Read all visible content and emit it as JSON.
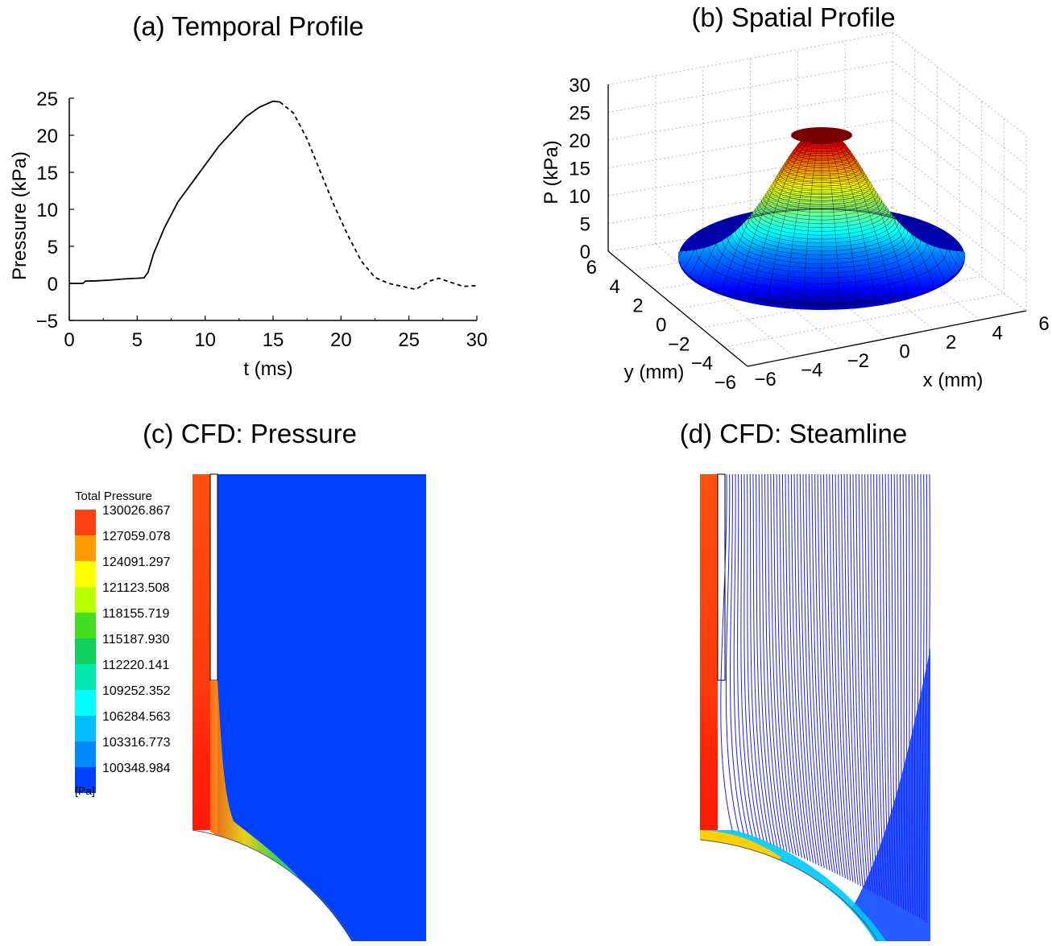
{
  "panels": {
    "a_title": "(a) Temporal Profile",
    "b_title": "(b) Spatial Profile",
    "c_title": "(c) CFD: Pressure",
    "d_title": "(d) CFD: Steamline"
  },
  "chart_data": [
    {
      "type": "line",
      "title": "(a) Temporal Profile",
      "xlabel": "t (ms)",
      "ylabel": "Pressure (kPa)",
      "xlim": [
        0,
        30
      ],
      "ylim": [
        -5,
        25
      ],
      "xticks": [
        "0",
        "5",
        "10",
        "15",
        "20",
        "25",
        "30"
      ],
      "yticks": [
        "−5",
        "0",
        "5",
        "10",
        "15",
        "20",
        "25"
      ],
      "grid": false,
      "series": [
        {
          "style": "solid",
          "x": [
            0,
            1,
            1.2,
            2,
            3,
            4,
            5,
            5.5,
            5.8,
            6.2,
            7,
            8,
            9,
            10,
            11,
            12,
            13,
            14,
            15,
            15.5
          ],
          "y": [
            0,
            0,
            0.3,
            0.35,
            0.45,
            0.6,
            0.7,
            0.75,
            1.5,
            4,
            7.5,
            11,
            13.5,
            16,
            18.5,
            20.5,
            22.5,
            23.8,
            24.6,
            24.5
          ]
        },
        {
          "style": "dashed",
          "x": [
            15.5,
            16.5,
            17.5,
            18.5,
            19.5,
            20.5,
            21.5,
            22.5,
            23.5,
            24.5,
            25.5,
            26.5,
            27.2,
            28,
            29,
            30
          ],
          "y": [
            24.5,
            23,
            19.5,
            15,
            10.5,
            6.5,
            3,
            0.8,
            0,
            -0.4,
            -0.8,
            0.3,
            0.7,
            0.2,
            -0.4,
            -0.3
          ]
        }
      ]
    },
    {
      "type": "surface",
      "title": "(b) Spatial Profile",
      "xlabel": "x (mm)",
      "ylabel": "y (mm)",
      "zlabel": "P (kPa)",
      "xlim": [
        -6,
        6
      ],
      "ylim": [
        -6,
        6
      ],
      "zlim": [
        0,
        30
      ],
      "xticks": [
        "−6",
        "−4",
        "−2",
        "0",
        "2",
        "4",
        "6"
      ],
      "yticks": [
        "−6",
        "−4",
        "−2",
        "0",
        "2",
        "4",
        "6"
      ],
      "zticks": [
        "0",
        "5",
        "10",
        "15",
        "20",
        "25",
        "30"
      ],
      "peak": 24.5,
      "grid": true,
      "colormap": "jet"
    },
    {
      "type": "heatmap",
      "title": "(c) CFD: Pressure",
      "legend_title": "Total Pressure",
      "legend_unit": "[Pa]",
      "legend_values": [
        "130026.867",
        "127059.078",
        "124091.297",
        "121123.508",
        "118155.719",
        "115187.930",
        "112220.141",
        "109252.352",
        "106284.563",
        "103316.773",
        "100348.984"
      ],
      "legend_colors": [
        "#ff4010",
        "#ff9a00",
        "#ffff00",
        "#b8ff00",
        "#44e020",
        "#10d060",
        "#00e8b0",
        "#00ffff",
        "#00bfff",
        "#0088ff",
        "#0040ff"
      ]
    },
    {
      "type": "heatmap",
      "title": "(d) CFD: Steamline",
      "legend_values": [],
      "streamline_color": "#1a1aff"
    }
  ],
  "colors": {
    "field_background": "#0040ff",
    "jet_top": "#7a0000",
    "jet_bottom": "#00007a"
  }
}
